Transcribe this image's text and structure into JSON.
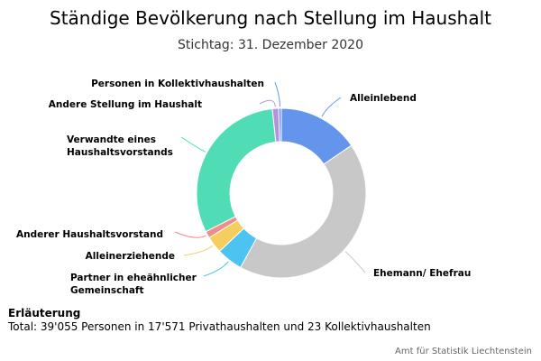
{
  "chart_data": {
    "type": "pie",
    "title": "Ständige Bevölkerung nach Stellung im Haushalt",
    "subtitle": "Stichtag: 31. Dezember 2020",
    "donut": true,
    "slices": [
      {
        "label": "Alleinlebend",
        "value": 15.5,
        "color": "#6495ED"
      },
      {
        "label": "Ehemann/ Ehefrau",
        "value": 42.5,
        "color": "#C8C8C8"
      },
      {
        "label": "Partner in eheähnlicher Gemeinschaft",
        "value": 5.0,
        "color": "#4CC3F0"
      },
      {
        "label": "Alleinerziehende",
        "value": 3.2,
        "color": "#F5CE5E"
      },
      {
        "label": "Anderer Haushaltsvorstand",
        "value": 1.3,
        "color": "#F08C8C"
      },
      {
        "label": "Verwandte eines Haushaltsvorstands",
        "value": 30.8,
        "color": "#50DCB4"
      },
      {
        "label": "Andere Stellung im Haushalt",
        "value": 1.2,
        "color": "#B493DC"
      },
      {
        "label": "Personen in Kollektivhaushalten",
        "value": 0.5,
        "color": "#6495ED"
      }
    ]
  },
  "note": {
    "heading": "Erläuterung",
    "text": "Total: 39'055 Personen in 17'571 Privathaushalten und 23 Kollektivhaushalten"
  },
  "credits": "Amt für Statistik Liechtenstein"
}
